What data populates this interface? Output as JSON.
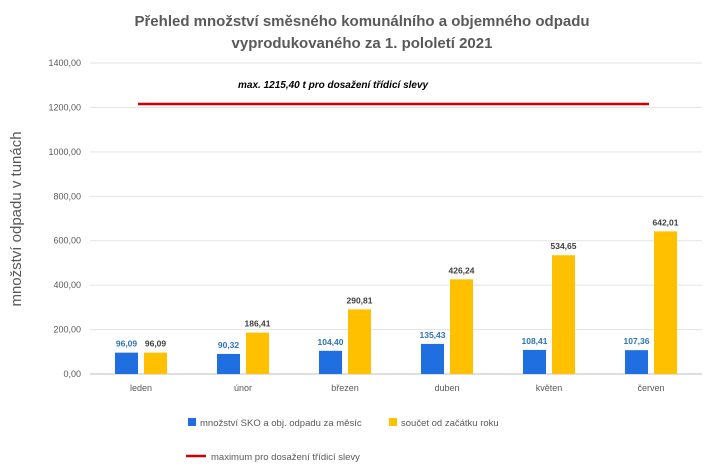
{
  "chart_data": {
    "type": "bar",
    "title_lines": [
      "Přehled množství směsného komunálního a objemného odpadu",
      "vyprodukovaného za 1. pololetí 2021"
    ],
    "ylabel": "množství odpadu v tunách",
    "xlabel": "",
    "ylim": [
      0,
      1400
    ],
    "yticks": [
      "0,00",
      "200,00",
      "400,00",
      "600,00",
      "800,00",
      "1000,00",
      "1200,00",
      "1400,00"
    ],
    "grid": true,
    "categories": [
      "leden",
      "únor",
      "březen",
      "duben",
      "květen",
      "červen"
    ],
    "series": [
      {
        "name": "množství SKO a obj. odpadu za měsíc",
        "values": [
          96.09,
          90.32,
          104.4,
          135.43,
          108.41,
          107.36
        ],
        "labels": [
          "96,09",
          "90,32",
          "104,40",
          "135,43",
          "108,41",
          "107,36"
        ],
        "color": "#1F6FE0",
        "label_color": "#2E75B6"
      },
      {
        "name": "součet od začátku roku",
        "values": [
          96.09,
          186.41,
          290.81,
          426.24,
          534.65,
          642.01
        ],
        "labels": [
          "96,09",
          "186,41",
          "290,81",
          "426,24",
          "534,65",
          "642,01"
        ],
        "color": "#FFC000",
        "label_color": "#404040"
      }
    ],
    "reference_line": {
      "name": "maximum pro dosažení třídicí slevy",
      "value": 1215.4,
      "annotation": "max. 1215,40 t pro dosažení třídicí slevy",
      "color": "#D00000"
    },
    "legend_position": "bottom"
  }
}
